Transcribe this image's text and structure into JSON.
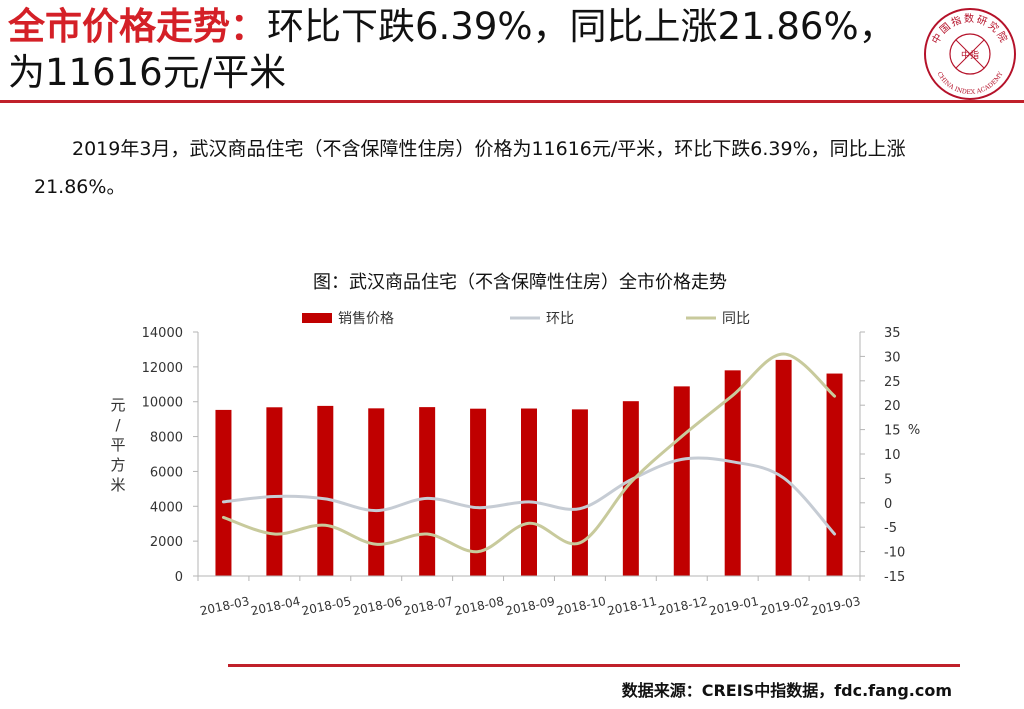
{
  "title": {
    "lead": "全市价格走势：",
    "rest": "环比下跌6.39%，同比上涨21.86%，为11616元/平米"
  },
  "logo": {
    "text_top": "中国指数研究院",
    "text_center": "中指",
    "text_bottom": "CHINA INDEX ACADEMY",
    "color": "#b5122a"
  },
  "summary": "2019年3月，武汉商品住宅（不含保障性住房）价格为11616元/平米，环比下跌6.39%，同比上涨21.86%。",
  "footer": {
    "source": "数据来源：CREIS中指数据，fdc.fang.com"
  },
  "chart_data": {
    "type": "bar",
    "title": "图：武汉商品住宅（不含保障性住房）全市价格走势",
    "categories": [
      "2018-03",
      "2018-04",
      "2018-05",
      "2018-06",
      "2018-07",
      "2018-08",
      "2018-09",
      "2018-10",
      "2018-11",
      "2018-12",
      "2019-01",
      "2019-02",
      "2019-03"
    ],
    "ylabel": "元/平方米",
    "y2label": "%",
    "ylim": [
      0,
      14000
    ],
    "y_ticks": [
      0,
      2000,
      4000,
      6000,
      8000,
      10000,
      12000,
      14000
    ],
    "y2lim": [
      -15,
      35
    ],
    "y2_ticks": [
      -15,
      -10,
      -5,
      0,
      5,
      10,
      15,
      20,
      25,
      30,
      35
    ],
    "legend_position": "top",
    "grid": false,
    "series": [
      {
        "name": "销售价格",
        "type": "bar",
        "axis": "left",
        "color": "#c00000",
        "values": [
          9530,
          9680,
          9760,
          9620,
          9690,
          9600,
          9610,
          9560,
          10030,
          10880,
          11800,
          12400,
          11616
        ]
      },
      {
        "name": "环比",
        "type": "line",
        "axis": "right",
        "color": "#c6ccd4",
        "values": [
          0.2,
          1.3,
          0.8,
          -1.6,
          0.9,
          -1.0,
          0.2,
          -1.2,
          4.7,
          8.9,
          8.4,
          5.1,
          -6.39
        ]
      },
      {
        "name": "同比",
        "type": "line",
        "axis": "right",
        "color": "#c8ca9c",
        "values": [
          -3.0,
          -6.4,
          -4.6,
          -8.5,
          -6.4,
          -10.0,
          -4.2,
          -8.2,
          4.2,
          13.6,
          22.0,
          30.5,
          21.86
        ]
      }
    ]
  }
}
